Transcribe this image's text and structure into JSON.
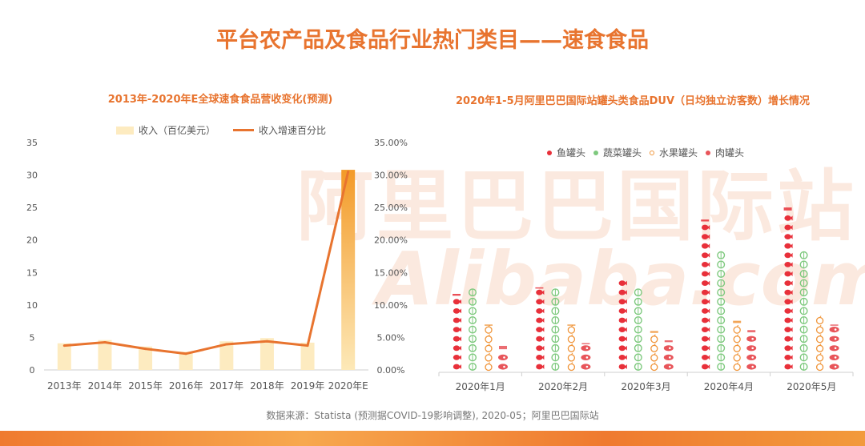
{
  "page": {
    "title": "平台农产品及食品行业热门类目——速食食品",
    "source": "数据来源：Statista (预测据COVID-19影响调整), 2020-05；阿里巴巴国际站",
    "watermark_cn": "阿里巴巴国际站",
    "watermark_en": "Alibaba.com"
  },
  "colors": {
    "accent": "#e8742f",
    "bar": "#fdebc0",
    "bar_highlight": "#f7a52a",
    "line": "#e8742f"
  },
  "chart_data": [
    {
      "type": "bar",
      "title": "2013年-2020年E全球速食食品营收变化(预测)",
      "categories": [
        "2013年",
        "2014年",
        "2015年",
        "2016年",
        "2017年",
        "2018年",
        "2019年",
        "2020年E"
      ],
      "series": [
        {
          "name": "收入（百亿美元）",
          "type": "bar",
          "axis": "left",
          "values": [
            4.1,
            4.6,
            3.6,
            2.8,
            4.4,
            4.9,
            4.2,
            30.8
          ]
        },
        {
          "name": "收入增速百分比",
          "type": "line",
          "axis": "right",
          "values": [
            0.0375,
            0.0425,
            0.0325,
            0.025,
            0.0395,
            0.044,
            0.0375,
            0.305
          ]
        }
      ],
      "ylim": [
        0,
        35
      ],
      "yticks": [
        "0",
        "5",
        "10",
        "15",
        "20",
        "25",
        "30",
        "35"
      ],
      "y2lim": [
        0,
        0.35
      ],
      "y2ticks": [
        "0.00%",
        "5.00%",
        "10.00%",
        "15.00%",
        "20.00%",
        "25.00%",
        "30.00%",
        "35.00%"
      ],
      "legend": "top",
      "grid": false
    },
    {
      "type": "bar",
      "subtype": "pictogram",
      "title": "2020年1-5月阿里巴巴国际站罐头类食品DUV（日均独立访客数）增长情况",
      "categories": [
        "2020年1月",
        "2020年2月",
        "2020年3月",
        "2020年4月",
        "2020年5月"
      ],
      "series": [
        {
          "name": "鱼罐头",
          "color": "#e8303a",
          "icon": "fish-can-icon",
          "values": [
            8.5,
            9.2,
            10.0,
            16.5,
            17.8
          ]
        },
        {
          "name": "蔬菜罐头",
          "color": "#7ec97e",
          "icon": "vegetable-icon",
          "values": [
            9.0,
            9.0,
            9.0,
            13.0,
            13.0
          ]
        },
        {
          "name": "水果罐头",
          "color": "#f0953a",
          "icon": "fruit-icon",
          "values": [
            5.2,
            5.2,
            4.5,
            5.6,
            6.0
          ]
        },
        {
          "name": "肉罐头",
          "color": "#e8555a",
          "icon": "meat-icon",
          "values": [
            2.9,
            3.2,
            3.5,
            4.6,
            5.2
          ]
        }
      ],
      "legend": "top",
      "grid": false
    }
  ]
}
